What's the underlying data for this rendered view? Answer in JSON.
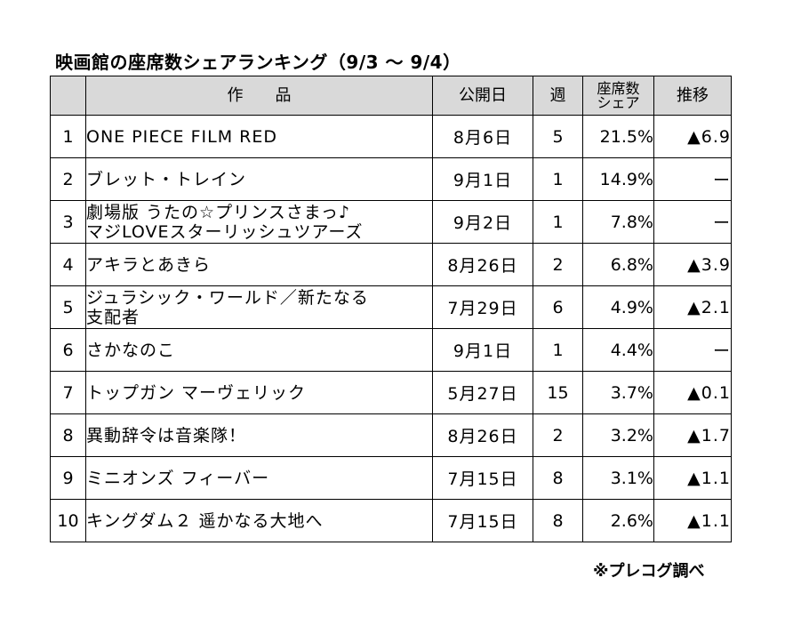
{
  "title": "映画館の座席数シェアランキング（9/3 ～ 9/4）",
  "headers": {
    "rank": "",
    "title": "作　　品",
    "release": "公開日",
    "weeks": "週",
    "share_line1": "座席数",
    "share_line2": "シェア",
    "trend": "推移"
  },
  "rows": [
    {
      "rank": "1",
      "title_lines": [
        "ONE PIECE FILM RED"
      ],
      "release": "8月6日",
      "weeks": "5",
      "share": "21.5%",
      "trend": "▲6.9"
    },
    {
      "rank": "2",
      "title_lines": [
        "ブレット・トレイン"
      ],
      "release": "9月1日",
      "weeks": "1",
      "share": "14.9%",
      "trend": "ー"
    },
    {
      "rank": "3",
      "title_lines": [
        "劇場版 うたの☆プリンスさまっ♪",
        "マジLOVEスターリッシュツアーズ"
      ],
      "release": "9月2日",
      "weeks": "1",
      "share": "7.8%",
      "trend": "ー"
    },
    {
      "rank": "4",
      "title_lines": [
        "アキラとあきら"
      ],
      "release": "8月26日",
      "weeks": "2",
      "share": "6.8%",
      "trend": "▲3.9"
    },
    {
      "rank": "5",
      "title_lines": [
        "ジュラシック・ワールド／新たなる",
        "支配者"
      ],
      "release": "7月29日",
      "weeks": "6",
      "share": "4.9%",
      "trend": "▲2.1"
    },
    {
      "rank": "6",
      "title_lines": [
        "さかなのこ"
      ],
      "release": "9月1日",
      "weeks": "1",
      "share": "4.4%",
      "trend": "ー"
    },
    {
      "rank": "7",
      "title_lines": [
        "トップガン マーヴェリック"
      ],
      "release": "5月27日",
      "weeks": "15",
      "share": "3.7%",
      "trend": "▲0.1"
    },
    {
      "rank": "8",
      "title_lines": [
        "異動辞令は音楽隊！"
      ],
      "release": "8月26日",
      "weeks": "2",
      "share": "3.2%",
      "trend": "▲1.7"
    },
    {
      "rank": "9",
      "title_lines": [
        "ミニオンズ フィーバー"
      ],
      "release": "7月15日",
      "weeks": "8",
      "share": "3.1%",
      "trend": "▲1.1"
    },
    {
      "rank": "10",
      "title_lines": [
        "キングダム２ 遥かなる大地へ"
      ],
      "release": "7月15日",
      "weeks": "8",
      "share": "2.6%",
      "trend": "▲1.1"
    }
  ],
  "source": "※プレコグ調べ",
  "colors": {
    "header_bg": "#d9d9d9",
    "border": "#000000"
  }
}
